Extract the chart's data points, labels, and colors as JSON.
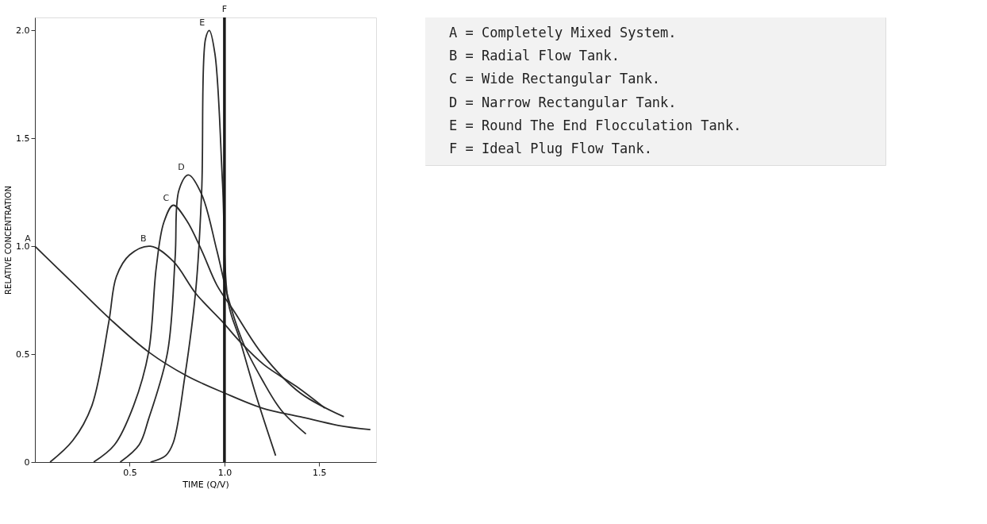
{
  "chart_data": {
    "type": "line",
    "xlabel": "TIME (Q/V)",
    "ylabel": "RELATIVE CONCENTRATION",
    "xlim": [
      0,
      1.8
    ],
    "ylim": [
      0,
      2.06
    ],
    "xticks": [
      {
        "value": 0.5,
        "label": "0.5"
      },
      {
        "value": 1.0,
        "label": "1.0"
      },
      {
        "value": 1.5,
        "label": "1.5"
      }
    ],
    "yticks": [
      0,
      {
        "value": 0.5,
        "label": "0.5"
      },
      {
        "value": 1.0,
        "label": "1.0"
      },
      {
        "value": 1.5,
        "label": "1.5"
      },
      {
        "value": 2.0,
        "label": "2.0"
      }
    ],
    "grid": false,
    "legend": false,
    "marker": "none",
    "line_style": "solid",
    "series": [
      {
        "name": "A",
        "color": "#2a2a2a",
        "x": [
          0,
          0.2,
          0.4,
          0.6,
          0.8,
          1.0,
          1.2,
          1.4,
          1.6,
          1.77
        ],
        "values": [
          1.0,
          0.83,
          0.66,
          0.51,
          0.4,
          0.32,
          0.25,
          0.21,
          0.17,
          0.15
        ]
      },
      {
        "name": "B",
        "color": "#2a2a2a",
        "x": [
          0.08,
          0.2,
          0.3,
          0.39,
          0.43,
          0.5,
          0.61,
          0.73,
          0.85,
          0.99,
          1.08,
          1.21,
          1.38,
          1.53
        ],
        "values": [
          0,
          0.1,
          0.26,
          0.65,
          0.86,
          0.96,
          1.0,
          0.93,
          0.78,
          0.65,
          0.56,
          0.45,
          0.35,
          0.25
        ]
      },
      {
        "name": "C",
        "color": "#2a2a2a",
        "x": [
          0.31,
          0.42,
          0.52,
          0.6,
          0.64,
          0.68,
          0.73,
          0.8,
          0.88,
          0.96,
          1.05,
          1.2,
          1.4,
          1.63
        ],
        "values": [
          0,
          0.08,
          0.26,
          0.51,
          0.9,
          1.11,
          1.19,
          1.12,
          0.98,
          0.82,
          0.7,
          0.5,
          0.32,
          0.21
        ]
      },
      {
        "name": "D",
        "color": "#2a2a2a",
        "x": [
          0.45,
          0.55,
          0.6,
          0.7,
          0.74,
          0.76,
          0.81,
          0.88,
          0.96,
          1.02,
          1.1,
          1.2,
          1.3,
          1.43
        ],
        "values": [
          0,
          0.08,
          0.2,
          0.51,
          0.95,
          1.26,
          1.33,
          1.24,
          0.98,
          0.76,
          0.55,
          0.38,
          0.24,
          0.13
        ]
      },
      {
        "name": "E",
        "color": "#2a2a2a",
        "x": [
          0.61,
          0.69,
          0.73,
          0.79,
          0.85,
          0.88,
          0.9,
          0.92,
          0.95,
          0.99,
          1.02,
          1.08,
          1.17,
          1.27
        ],
        "values": [
          0,
          0.03,
          0.09,
          0.39,
          0.81,
          1.26,
          1.96,
          2.0,
          1.89,
          1.29,
          0.74,
          0.57,
          0.3,
          0.03
        ]
      }
    ],
    "ref_lines": [
      {
        "axis": "x",
        "value": 1.0,
        "label": "F",
        "color": "#1a1a1a",
        "line_style": "solid"
      }
    ],
    "annotations": [
      "A = Completely Mixed System.",
      "B = Radial Flow Tank.",
      "C = Wide Rectangular Tank.",
      "D = Narrow Rectangular Tank.",
      "E = Round The End Flocculation Tank.",
      "F = Ideal Plug Flow Tank."
    ]
  }
}
